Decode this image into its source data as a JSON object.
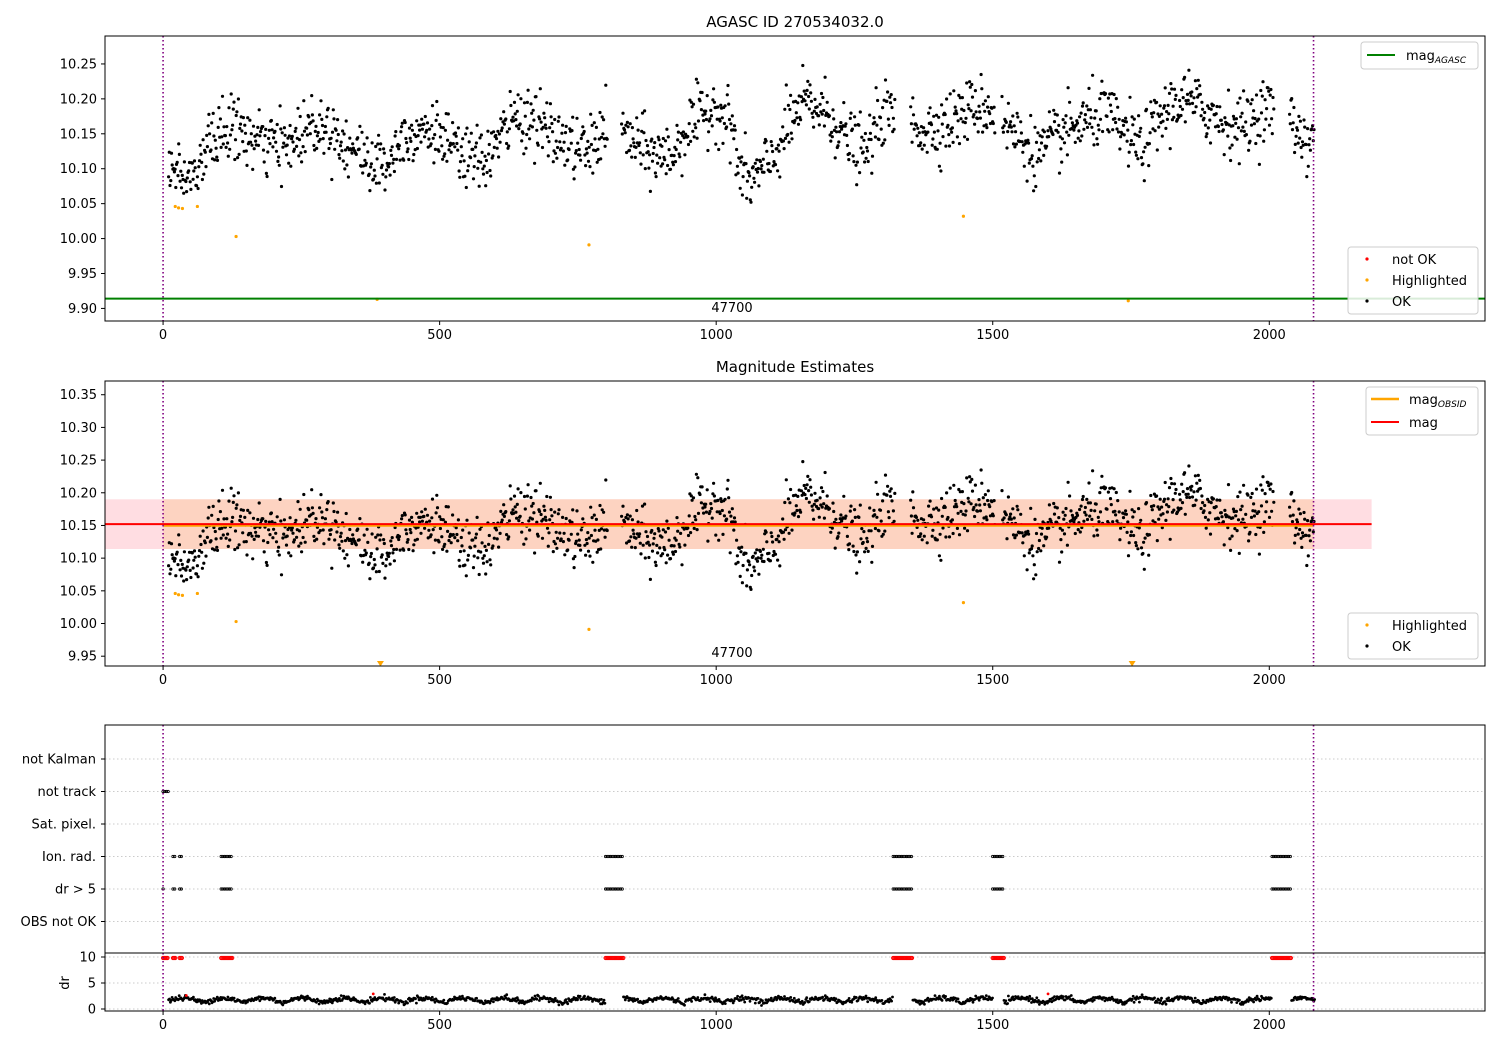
{
  "figure": {
    "colors": {
      "ok": "#000000",
      "highlighted": "#ffa500",
      "not_ok": "#ff0000",
      "mag_agasc": "#008000",
      "mag_obsid": "#ffa500",
      "mag": "#ff0000",
      "band_outer": "#ffdde2",
      "band_inner": "#fdd3c1",
      "boundary": "#800080",
      "grid": "#bbbbbb"
    }
  },
  "chart_data": [
    {
      "id": "top",
      "type": "scatter",
      "title": "AGASC ID 270534032.0",
      "xlim": [
        -105,
        2390
      ],
      "ylim": [
        9.882,
        10.29
      ],
      "x_ticks": [
        0,
        500,
        1000,
        1500,
        2000
      ],
      "x_tick_labels": [
        "0",
        "500",
        "1000",
        "1500",
        "2000"
      ],
      "y_ticks": [
        9.9,
        9.95,
        10.0,
        10.05,
        10.1,
        10.15,
        10.2,
        10.25
      ],
      "y_tick_labels": [
        "9.90",
        "9.95",
        "10.00",
        "10.05",
        "10.10",
        "10.15",
        "10.20",
        "10.25"
      ],
      "vlines_x": [
        0,
        2080
      ],
      "hlines": [
        {
          "name": "mag_AGASC",
          "y": 9.914,
          "x": [
            -105,
            2390
          ]
        }
      ],
      "annotation": {
        "text": "47700",
        "x": 1040
      },
      "legend_lines": {
        "position": "upper right",
        "entries": [
          {
            "base": "mag",
            "sub": "AGASC"
          }
        ]
      },
      "legend_markers": {
        "position": "lower right",
        "entries": [
          "not OK",
          "Highlighted",
          "OK"
        ]
      },
      "highlighted_points": [
        {
          "x": 22,
          "y": 10.046
        },
        {
          "x": 28,
          "y": 10.044
        },
        {
          "x": 35,
          "y": 10.043
        },
        {
          "x": 62,
          "y": 10.046
        },
        {
          "x": 132,
          "y": 10.003
        },
        {
          "x": 387,
          "y": 9.913
        },
        {
          "x": 770,
          "y": 9.991
        },
        {
          "x": 1447,
          "y": 10.032
        },
        {
          "x": 1745,
          "y": 9.911
        }
      ]
    },
    {
      "id": "middle",
      "type": "scatter",
      "title": "Magnitude Estimates",
      "xlim": [
        -105,
        2390
      ],
      "ylim": [
        9.935,
        10.371
      ],
      "x_ticks": [
        0,
        500,
        1000,
        1500,
        2000
      ],
      "x_tick_labels": [
        "0",
        "500",
        "1000",
        "1500",
        "2000"
      ],
      "y_ticks": [
        9.95,
        10.0,
        10.05,
        10.1,
        10.15,
        10.2,
        10.25,
        10.3,
        10.35
      ],
      "y_tick_labels": [
        "9.95",
        "10.00",
        "10.05",
        "10.10",
        "10.15",
        "10.20",
        "10.25",
        "10.30",
        "10.35"
      ],
      "vlines_x": [
        0,
        2080
      ],
      "hlines": [
        {
          "name": "mag_OBSID",
          "y": 10.15,
          "x": [
            0,
            2080
          ]
        },
        {
          "name": "mag",
          "y": 10.152,
          "x": [
            -105,
            2185
          ]
        }
      ],
      "bands": [
        {
          "name": "outer",
          "y": [
            10.114,
            10.19
          ],
          "x": [
            -105,
            2185
          ]
        },
        {
          "name": "inner",
          "y": [
            10.114,
            10.19
          ],
          "x": [
            0,
            2080
          ]
        }
      ],
      "annotation": {
        "text": "47700",
        "x": 1040
      },
      "legend_lines": {
        "position": "upper right",
        "entries": [
          {
            "base": "mag",
            "sub": "OBSID"
          },
          {
            "base": "mag",
            "sub": ""
          }
        ]
      },
      "legend_markers": {
        "position": "lower right",
        "entries": [
          "Highlighted",
          "OK"
        ]
      },
      "highlighted_points": [
        {
          "x": 22,
          "y": 10.046
        },
        {
          "x": 28,
          "y": 10.044
        },
        {
          "x": 35,
          "y": 10.043
        },
        {
          "x": 62,
          "y": 10.046
        },
        {
          "x": 132,
          "y": 10.003
        },
        {
          "x": 770,
          "y": 9.991
        },
        {
          "x": 1447,
          "y": 10.032
        }
      ],
      "out_of_range_markers": [
        {
          "x": 393,
          "y": 9.935
        },
        {
          "x": 1752,
          "y": 9.935
        }
      ]
    },
    {
      "id": "bottom",
      "type": "scatter",
      "xlim": [
        -105,
        2390
      ],
      "x_ticks": [
        0,
        500,
        1000,
        1500,
        2000
      ],
      "x_tick_labels": [
        "0",
        "500",
        "1000",
        "1500",
        "2000"
      ],
      "flag_rows": [
        "not Kalman",
        "not track",
        "Sat. pixel.",
        "Ion. rad.",
        "dr > 5",
        "OBS not OK"
      ],
      "flag_intervals": {
        "not Kalman": [],
        "not track": [
          [
            0,
            10
          ]
        ],
        "Sat. pixel.": [],
        "Ion. rad.": [
          [
            18,
            22
          ],
          [
            30,
            34
          ],
          [
            105,
            125
          ],
          [
            800,
            832
          ],
          [
            1320,
            1355
          ],
          [
            1500,
            1520
          ],
          [
            2005,
            2040
          ]
        ],
        "dr > 5": [
          [
            0,
            2
          ],
          [
            18,
            22
          ],
          [
            30,
            34
          ],
          [
            105,
            125
          ],
          [
            800,
            832
          ],
          [
            1320,
            1355
          ],
          [
            1500,
            1520
          ],
          [
            2005,
            2040
          ]
        ],
        "OBS not OK": []
      },
      "dr": {
        "ylabel": "dr",
        "ylim": [
          0,
          10
        ],
        "y_ticks": [
          0,
          5,
          10
        ],
        "y_tick_labels": [
          "0",
          "5",
          "10"
        ],
        "clipped_intervals": [
          [
            0,
            8
          ],
          [
            18,
            22
          ],
          [
            30,
            34
          ],
          [
            105,
            125
          ],
          [
            800,
            832
          ],
          [
            1320,
            1355
          ],
          [
            1500,
            1520
          ],
          [
            2005,
            2040
          ]
        ]
      }
    }
  ]
}
